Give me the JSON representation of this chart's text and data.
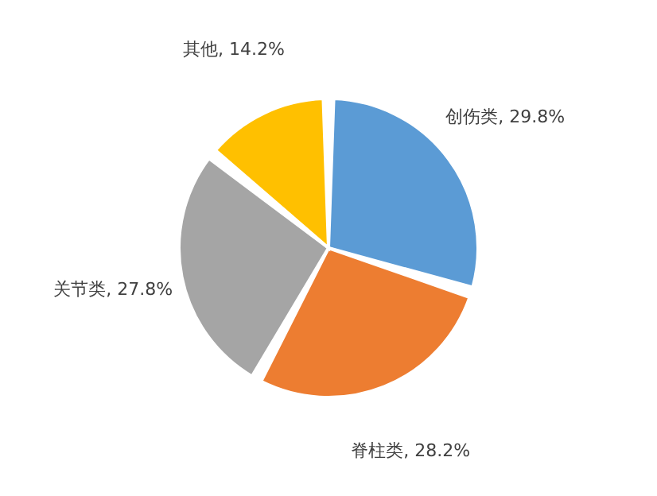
{
  "chart_data": {
    "type": "pie",
    "categories": [
      "创伤类",
      "脊柱类",
      "关节类",
      "其他"
    ],
    "values": [
      29.8,
      28.2,
      27.8,
      14.2
    ],
    "colors": [
      "#5b9bd5",
      "#ed7d31",
      "#a5a5a5",
      "#ffc000"
    ],
    "value_labels": [
      "29.8%",
      "28.2%",
      "27.8%",
      "14.2%"
    ]
  }
}
